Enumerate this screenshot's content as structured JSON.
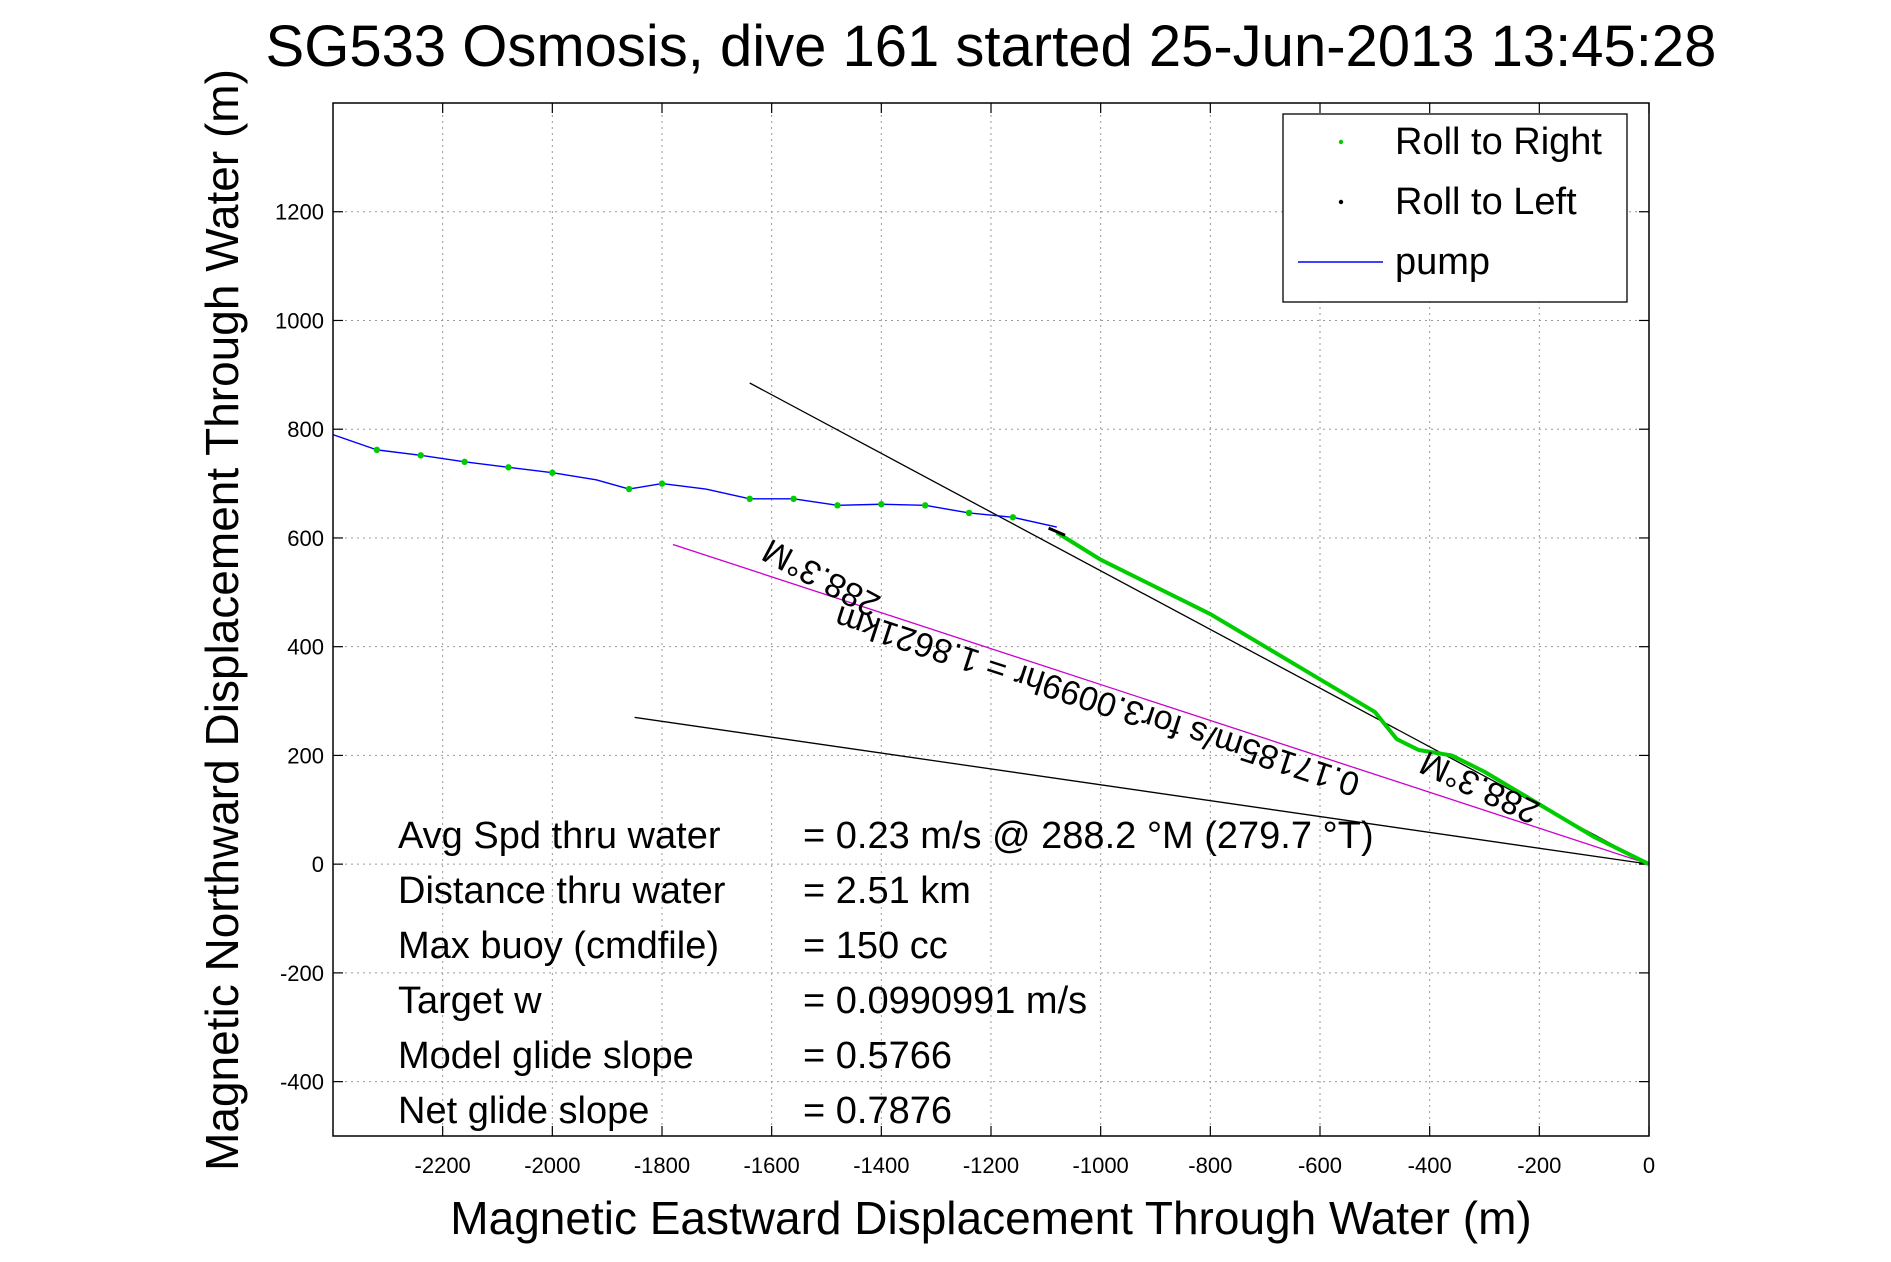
{
  "chart_data": {
    "type": "line",
    "title": "SG533 Osmosis, dive 161 started 25-Jun-2013 13:45:28",
    "xlabel": "Magnetic Eastward Displacement Through Water (m)",
    "ylabel": "Magnetic Northward Displacement Through Water (m)",
    "xlim": [
      -2400,
      0
    ],
    "ylim": [
      -500,
      1400
    ],
    "xticks": [
      -2200,
      -2000,
      -1800,
      -1600,
      -1400,
      -1200,
      -1000,
      -800,
      -600,
      -400,
      -200,
      0
    ],
    "yticks": [
      -400,
      -200,
      0,
      200,
      400,
      600,
      800,
      1000,
      1200
    ],
    "grid": true,
    "legend_position": "top-right",
    "legend": [
      {
        "label": "Roll to Right",
        "color": "#00cc00",
        "kind": "dot"
      },
      {
        "label": "Roll to Left",
        "color": "#000000",
        "kind": "dot"
      },
      {
        "label": "pump",
        "color": "#0000ff",
        "kind": "line"
      }
    ],
    "series": [
      {
        "name": "pump",
        "color": "#0000ff",
        "x": [
          -2400,
          -2320,
          -2240,
          -2160,
          -2080,
          -2000,
          -1920,
          -1860,
          -1800,
          -1720,
          -1640,
          -1560,
          -1480,
          -1400,
          -1320,
          -1240,
          -1160,
          -1080
        ],
        "y": [
          790,
          762,
          752,
          740,
          730,
          720,
          707,
          690,
          700,
          690,
          672,
          672,
          660,
          662,
          660,
          646,
          638,
          620
        ]
      },
      {
        "name": "Roll to Right",
        "color": "#00cc00",
        "x": [
          -1080,
          -1000,
          -900,
          -800,
          -700,
          -600,
          -500,
          -460,
          -420,
          -360,
          -300,
          -250,
          -200,
          -150,
          -100,
          -50,
          0
        ],
        "y": [
          610,
          560,
          510,
          460,
          400,
          340,
          280,
          230,
          210,
          200,
          170,
          140,
          110,
          80,
          50,
          25,
          0
        ]
      }
    ],
    "roll_right_markers": {
      "x": [
        -2320,
        -2240,
        -2160,
        -2080,
        -2000,
        -1860,
        -1800,
        -1640,
        -1560,
        -1480,
        -1400,
        -1320,
        -1240,
        -1160
      ],
      "y": [
        762,
        752,
        740,
        730,
        720,
        690,
        700,
        672,
        672,
        660,
        662,
        660,
        646,
        638
      ]
    },
    "roll_left_segment": {
      "x": [
        -1095,
        -1065
      ],
      "y": [
        618,
        605
      ]
    },
    "reference_lines": [
      {
        "color": "#000000",
        "x": [
          -1640,
          0
        ],
        "y": [
          885,
          0
        ]
      },
      {
        "color": "#000000",
        "x": [
          -1850,
          0
        ],
        "y": [
          270,
          0
        ]
      },
      {
        "color": "#cc00cc",
        "x": [
          -1780,
          0
        ],
        "y": [
          588,
          0
        ]
      }
    ],
    "annotations": [
      {
        "text": "288.3°M",
        "x": -1500,
        "y": 545,
        "angle": 208
      },
      {
        "text": "0.17185m/s for3.0099hr = 1.8621km",
        "x": -1000,
        "y": 320,
        "angle": 198
      },
      {
        "text": "288.3°M",
        "x": -300,
        "y": 160,
        "angle": 205
      }
    ],
    "stats": [
      {
        "label": "Avg Spd thru water",
        "value": "=  0.23 m/s @ 288.2 °M (279.7 °T)"
      },
      {
        "label": "Distance thru water",
        "value": "=  2.51 km"
      },
      {
        "label": "Max buoy (cmdfile)",
        "value": "= 150 cc"
      },
      {
        "label": "Target w",
        "value": "= 0.0990991 m/s"
      },
      {
        "label": "Model glide slope",
        "value": "= 0.5766"
      },
      {
        "label": "Net glide slope",
        "value": "= 0.7876"
      }
    ]
  }
}
